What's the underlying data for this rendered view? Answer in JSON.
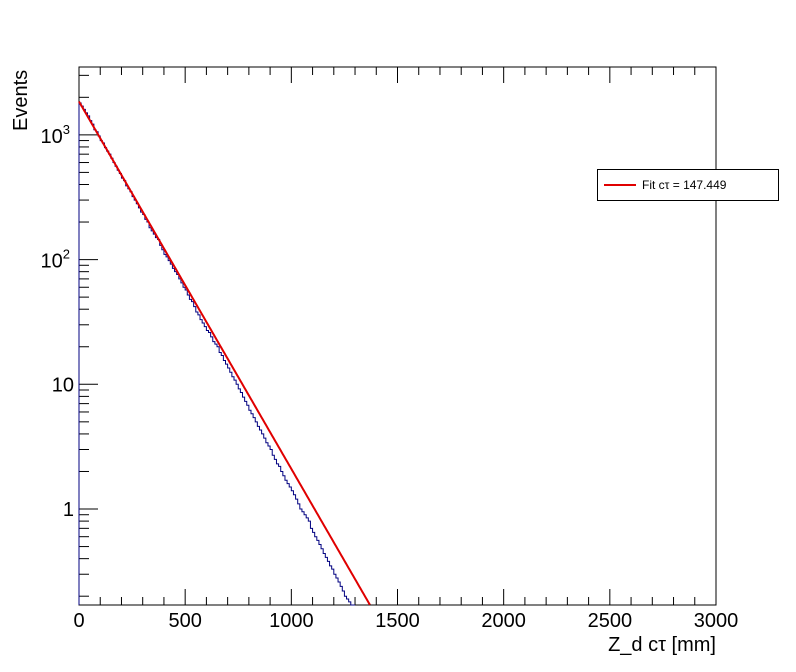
{
  "chart_data": {
    "type": "bar",
    "style": "step-histogram",
    "xlabel": "Z_d cτ [mm]",
    "ylabel": "Events",
    "xlim": [
      0,
      3000
    ],
    "ylim": [
      0.17,
      3500
    ],
    "log_y": true,
    "grid": false,
    "legend_position": "right",
    "x_ticks": [
      "0",
      "500",
      "1000",
      "1500",
      "2000",
      "2500",
      "3000"
    ],
    "y_ticks": [
      {
        "value": 1,
        "label": "1"
      },
      {
        "value": 10,
        "label": "10"
      },
      {
        "value": 100,
        "label": "10",
        "exponent": "2"
      },
      {
        "value": 1000,
        "label": "10",
        "exponent": "3"
      }
    ],
    "bin_width": 10,
    "histogram_color": "#000080",
    "histogram": [
      1800,
      1700,
      1600,
      1500,
      1420,
      1300,
      1220,
      1100,
      1060,
      980,
      900,
      860,
      790,
      740,
      700,
      650,
      600,
      560,
      520,
      490,
      450,
      430,
      390,
      370,
      350,
      320,
      300,
      280,
      260,
      240,
      230,
      210,
      200,
      180,
      170,
      160,
      150,
      145,
      130,
      120,
      110,
      105,
      98,
      92,
      85,
      80,
      76,
      70,
      65,
      60,
      57,
      52,
      48,
      46,
      42,
      38,
      36,
      33,
      31,
      29,
      27,
      26,
      24,
      22,
      21,
      20,
      18,
      17,
      15.5,
      14.5,
      13.5,
      12.5,
      11.5,
      10.8,
      10,
      9.2,
      8.6,
      7.9,
      7.3,
      6.8,
      6.2,
      5.8,
      5.4,
      5,
      4.6,
      4.3,
      4,
      3.7,
      3.4,
      3.2,
      3,
      2.7,
      2.5,
      2.3,
      2.2,
      2,
      1.85,
      1.7,
      1.6,
      1.5,
      1.4,
      1.3,
      1.2,
      1.1,
      1,
      0.95,
      0.9,
      0.85,
      0.8,
      0.7,
      0.65,
      0.6,
      0.56,
      0.52,
      0.48,
      0.44,
      0.41,
      0.38,
      0.35,
      0.33,
      0.3,
      0.28,
      0.26,
      0.24,
      0.22,
      0.2,
      0.19,
      0.18,
      0.17,
      0.16
    ],
    "fit": {
      "name": "Fit cτ = 147.449",
      "color": "#e00000",
      "amplitude": 1850,
      "ctau": 147.449,
      "x_range": [
        0,
        1380
      ]
    }
  }
}
